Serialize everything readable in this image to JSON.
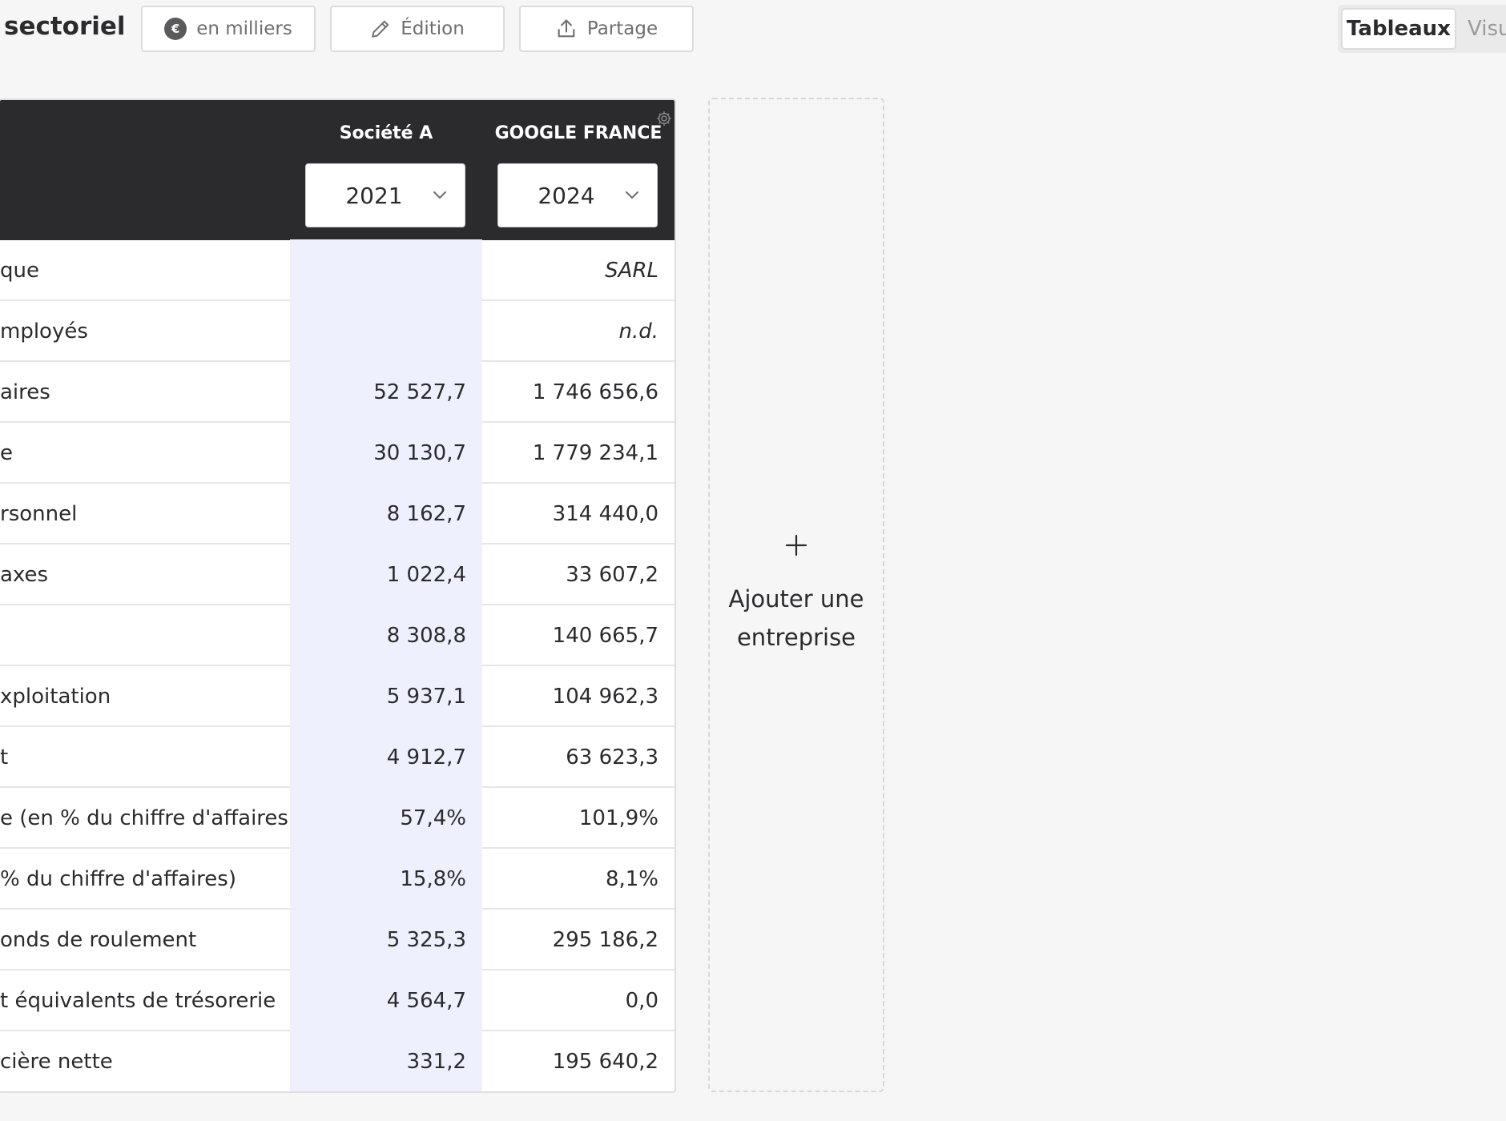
{
  "header": {
    "title": "sectoriel",
    "buttons": {
      "units": "en milliers",
      "edit": "Édition",
      "share": "Partage"
    },
    "currency_symbol": "€",
    "view_tabs": {
      "active": "Tableaux",
      "other": "Visu"
    }
  },
  "table": {
    "companies": [
      {
        "name": "Société A",
        "year": "2021"
      },
      {
        "name": "GOOGLE FRANCE",
        "year": "2024"
      }
    ],
    "rows": [
      {
        "label": "que",
        "a": "",
        "b": "SARL",
        "b_italic": true
      },
      {
        "label": "mployés",
        "a": "",
        "b": "n.d.",
        "b_italic": true
      },
      {
        "label": "aires",
        "a": "52 527,7",
        "b": "1 746 656,6"
      },
      {
        "label": "e",
        "a": "30 130,7",
        "b": "1 779 234,1"
      },
      {
        "label": "rsonnel",
        "a": "8 162,7",
        "b": "314 440,0"
      },
      {
        "label": "axes",
        "a": "1 022,4",
        "b": "33 607,2"
      },
      {
        "label": "",
        "a": "8 308,8",
        "b": "140 665,7"
      },
      {
        "label": "xploitation",
        "a": "5 937,1",
        "b": "104 962,3"
      },
      {
        "label": "t",
        "a": "4 912,7",
        "b": "63 623,3"
      },
      {
        "label": "e (en % du chiffre d'affaires)",
        "a": "57,4%",
        "b": "101,9%"
      },
      {
        "label": "% du chiffre d'affaires)",
        "a": "15,8%",
        "b": "8,1%"
      },
      {
        "label": "onds de roulement",
        "a": "5 325,3",
        "b": "295 186,2"
      },
      {
        "label": "t équivalents de trésorerie",
        "a": "4 564,7",
        "b": "0,0"
      },
      {
        "label": "cière nette",
        "a": "331,2",
        "b": "195 640,2"
      }
    ]
  },
  "add_company": {
    "label": "Ajouter une entreprise"
  },
  "icons": {
    "units": "euro-icon",
    "edit": "pencil-icon",
    "share": "share-icon",
    "settings": "gear-icon",
    "dropdown": "chevron-down-icon",
    "add": "plus-icon"
  },
  "colors": {
    "header_bg": "#2b2b2e",
    "highlight_column": "#eef0fd"
  }
}
